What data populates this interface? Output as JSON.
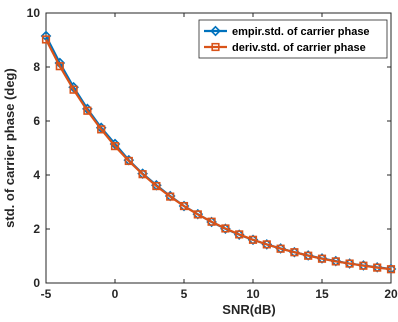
{
  "chart_data": {
    "type": "line",
    "xlabel": "SNR(dB)",
    "ylabel": "std. of carrier phase (deg)",
    "xlim": [
      -5,
      20
    ],
    "ylim": [
      0,
      10
    ],
    "xticks": [
      -5,
      0,
      5,
      10,
      15,
      20
    ],
    "yticks": [
      0,
      2,
      4,
      6,
      8,
      10
    ],
    "grid": false,
    "legend_position": "top-right",
    "x": [
      -5,
      -4,
      -3,
      -2,
      -1,
      0,
      1,
      2,
      3,
      4,
      5,
      6,
      7,
      8,
      9,
      10,
      11,
      12,
      13,
      14,
      15,
      16,
      17,
      18,
      19,
      20
    ],
    "series": [
      {
        "name": "empir.std. of carrier phase",
        "color": "#0072BD",
        "marker": "diamond",
        "values": [
          9.15,
          8.15,
          7.25,
          6.45,
          5.75,
          5.15,
          4.55,
          4.05,
          3.62,
          3.22,
          2.85,
          2.55,
          2.26,
          2.01,
          1.79,
          1.6,
          1.43,
          1.28,
          1.14,
          1.02,
          0.91,
          0.81,
          0.72,
          0.65,
          0.58,
          0.52
        ]
      },
      {
        "name": "deriv.std. of carrier phase",
        "color": "#D95319",
        "marker": "square",
        "values": [
          9.02,
          8.03,
          7.16,
          6.38,
          5.69,
          5.07,
          4.52,
          4.03,
          3.59,
          3.2,
          2.85,
          2.54,
          2.27,
          2.02,
          1.8,
          1.6,
          1.43,
          1.27,
          1.14,
          1.01,
          0.9,
          0.8,
          0.72,
          0.64,
          0.57,
          0.51
        ]
      }
    ]
  }
}
